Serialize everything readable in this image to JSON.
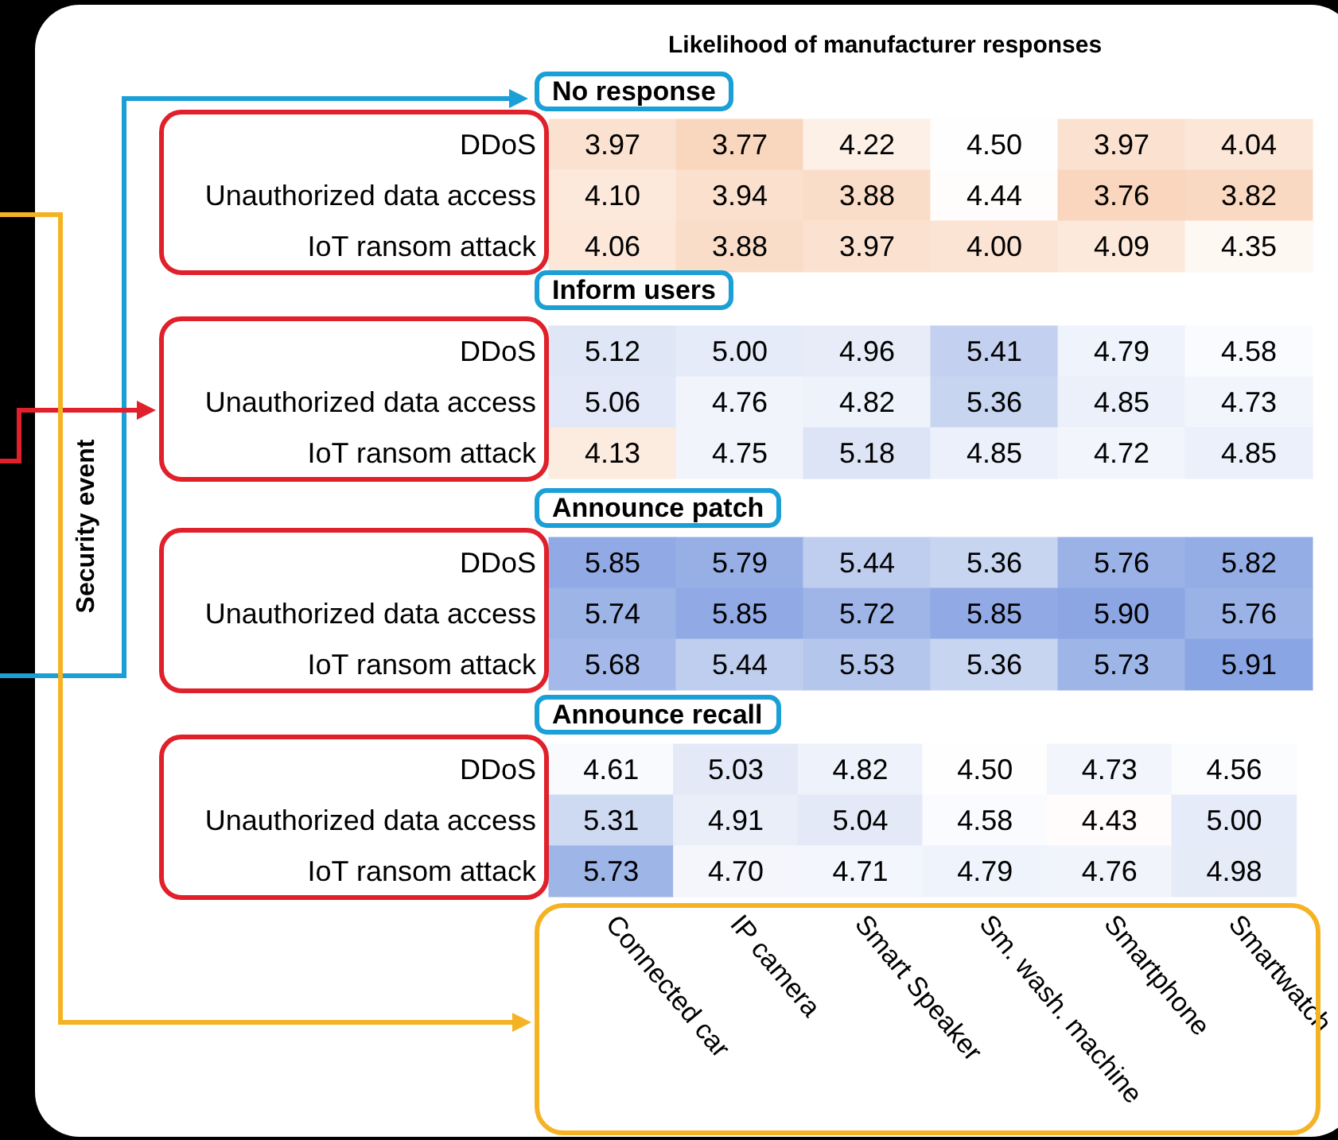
{
  "chart_data": [
    {
      "type": "heatmap",
      "title": "Likelihood of manufacturer responses",
      "subtitle": "No response",
      "annotations": [
        "Security event"
      ],
      "categories": [
        null,
        null,
        null,
        null,
        null,
        null
      ],
      "y_categories": [
        "DDoS",
        "Unauthorized data access",
        "IoT ransom attack"
      ],
      "cells": [
        [
          3.97,
          3.77,
          4.22,
          4.5,
          3.97,
          4.04
        ],
        [
          4.1,
          3.94,
          3.88,
          4.44,
          3.76,
          3.82
        ],
        [
          4.06,
          3.88,
          3.97,
          4.0,
          4.09,
          4.35
        ]
      ],
      "cell_labels": [
        [
          "3.97",
          "3.77",
          "4.22",
          "4.50",
          "3.97",
          "4.04"
        ],
        [
          "4.10",
          "3.94",
          "3.88",
          "4.44",
          "3.76",
          "3.82"
        ],
        [
          "4.06",
          "3.88",
          "3.97",
          "4.00",
          "4.09",
          "4.35"
        ]
      ],
      "tick_labels": "y",
      "data_labels": true
    },
    {
      "type": "heatmap",
      "title": "Inform users",
      "categories": [
        null,
        null,
        null,
        null,
        null,
        null
      ],
      "y_categories": [
        "DDoS",
        "Unauthorized data access",
        "IoT ransom attack"
      ],
      "cells": [
        [
          5.12,
          5.0,
          4.96,
          5.41,
          4.79,
          4.58
        ],
        [
          5.06,
          4.76,
          4.82,
          5.36,
          4.85,
          4.73
        ],
        [
          4.13,
          4.75,
          5.18,
          4.85,
          4.72,
          4.85
        ]
      ],
      "cell_labels": [
        [
          "5.12",
          "5.00",
          "4.96",
          "5.41",
          "4.79",
          "4.58"
        ],
        [
          "5.06",
          "4.76",
          "4.82",
          "5.36",
          "4.85",
          "4.73"
        ],
        [
          "4.13",
          "4.75",
          "5.18",
          "4.85",
          "4.72",
          "4.85"
        ]
      ],
      "tick_labels": "y",
      "data_labels": true
    },
    {
      "type": "heatmap",
      "title": "Announce patch",
      "categories": [
        null,
        null,
        null,
        null,
        null,
        null
      ],
      "y_categories": [
        "DDoS",
        "Unauthorized data access",
        "IoT ransom attack"
      ],
      "cells": [
        [
          5.85,
          5.79,
          5.44,
          5.36,
          5.76,
          5.82
        ],
        [
          5.74,
          5.85,
          5.72,
          5.85,
          5.9,
          5.76
        ],
        [
          5.68,
          5.44,
          5.53,
          5.36,
          5.73,
          5.91
        ]
      ],
      "cell_labels": [
        [
          "5.85",
          "5.79",
          "5.44",
          "5.36",
          "5.76",
          "5.82"
        ],
        [
          "5.74",
          "5.85",
          "5.72",
          "5.85",
          "5.90",
          "5.76"
        ],
        [
          "5.68",
          "5.44",
          "5.53",
          "5.36",
          "5.73",
          "5.91"
        ]
      ],
      "tick_labels": "y",
      "data_labels": true
    },
    {
      "type": "heatmap",
      "title": "Announce recall",
      "categories": [
        "Connected car",
        "IP camera",
        "Smart Speaker",
        "Sm. wash. machine",
        "Smartphone",
        "Smartwatch"
      ],
      "y_categories": [
        "DDoS",
        "Unauthorized data access",
        "IoT ransom attack"
      ],
      "cells": [
        [
          4.61,
          5.03,
          4.82,
          4.5,
          4.73,
          4.56
        ],
        [
          5.31,
          4.91,
          5.04,
          4.58,
          4.43,
          5.0
        ],
        [
          5.73,
          4.7,
          4.71,
          4.79,
          4.76,
          4.98
        ]
      ],
      "cell_labels": [
        [
          "4.61",
          "5.03",
          "4.82",
          "4.50",
          "4.73",
          "4.56"
        ],
        [
          "5.31",
          "4.91",
          "5.04",
          "4.58",
          "4.43",
          "5.00"
        ],
        [
          "5.73",
          "4.70",
          "4.71",
          "4.79",
          "4.76",
          "4.98"
        ]
      ],
      "data_labels": true
    }
  ]
}
